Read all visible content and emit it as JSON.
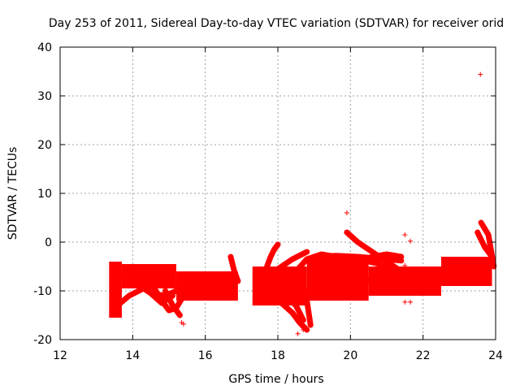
{
  "chart_data": {
    "type": "scatter",
    "title": "Day 253 of 2011, Sidereal Day-to-day VTEC variation (SDTVAR) for receiver orid",
    "xlabel": "GPS time / hours",
    "ylabel": "SDTVAR / TECUs",
    "xlim": [
      12,
      24
    ],
    "ylim": [
      -20,
      40
    ],
    "xticks": [
      12,
      14,
      16,
      18,
      20,
      22,
      24
    ],
    "yticks": [
      -20,
      -10,
      0,
      10,
      20,
      30,
      40
    ],
    "grid": true,
    "marker": "+",
    "color": "#ff0000",
    "bands": [
      {
        "x_start": 13.35,
        "x_end": 13.7,
        "y_low": -15.5,
        "y_high": -4
      },
      {
        "x_start": 13.7,
        "x_end": 15.2,
        "y_low": -9.5,
        "y_high": -4.5
      },
      {
        "x_start": 15.2,
        "x_end": 16.9,
        "y_low": -12,
        "y_high": -6
      },
      {
        "x_start": 17.3,
        "x_end": 18.8,
        "y_low": -13,
        "y_high": -5
      },
      {
        "x_start": 18.8,
        "x_end": 20.5,
        "y_low": -12,
        "y_high": -3
      },
      {
        "x_start": 20.5,
        "x_end": 22.5,
        "y_low": -11,
        "y_high": -5
      },
      {
        "x_start": 22.5,
        "x_end": 23.9,
        "y_low": -9,
        "y_high": -3
      }
    ],
    "traces": [
      {
        "x": [
          13.5,
          13.9,
          14.3,
          14.7,
          15.1,
          15.5
        ],
        "y": [
          -13.5,
          -11,
          -9.5,
          -8.5,
          -8,
          -7.5
        ]
      },
      {
        "x": [
          13.5,
          14.0,
          14.5,
          14.9,
          15.2
        ],
        "y": [
          -6,
          -8,
          -10.5,
          -11,
          -10
        ]
      },
      {
        "x": [
          14.3,
          14.5,
          14.8,
          15.1
        ],
        "y": [
          -8,
          -10.5,
          -12.5,
          -11
        ]
      },
      {
        "x": [
          14.6,
          14.8,
          15.0,
          15.2,
          15.4
        ],
        "y": [
          -9.5,
          -12,
          -14,
          -13.5,
          -11
        ]
      },
      {
        "x": [
          14.9,
          15.1,
          15.3
        ],
        "y": [
          -10,
          -13,
          -15
        ]
      },
      {
        "x": [
          16.7,
          16.8,
          16.9
        ],
        "y": [
          -3,
          -6,
          -8
        ]
      },
      {
        "x": [
          17.4,
          17.8,
          18.1,
          18.4,
          18.6,
          18.8
        ],
        "y": [
          -9,
          -10.5,
          -12.5,
          -14.5,
          -16.5,
          -18
        ]
      },
      {
        "x": [
          17.5,
          17.9,
          18.2,
          18.5,
          18.7
        ],
        "y": [
          -7,
          -9,
          -11,
          -13,
          -16
        ]
      },
      {
        "x": [
          17.7,
          17.8,
          17.9,
          18.0
        ],
        "y": [
          -5,
          -3,
          -1.5,
          -0.5
        ]
      },
      {
        "x": [
          17.6,
          18.0,
          18.4,
          18.8
        ],
        "y": [
          -8,
          -5.5,
          -3.5,
          -2
        ]
      },
      {
        "x": [
          18.6,
          18.7,
          18.8,
          18.9
        ],
        "y": [
          -7,
          -9,
          -12,
          -17
        ]
      },
      {
        "x": [
          18.5,
          18.8,
          19.2,
          19.6
        ],
        "y": [
          -6,
          -3.5,
          -2.5,
          -3
        ]
      },
      {
        "x": [
          19.9,
          20.2,
          20.6,
          21.0,
          21.4
        ],
        "y": [
          2,
          0,
          -2,
          -4,
          -6
        ]
      },
      {
        "x": [
          19.0,
          19.6,
          20.2,
          20.8,
          21.4
        ],
        "y": [
          -3,
          -2.8,
          -3,
          -3.4,
          -3.8
        ]
      },
      {
        "x": [
          20.2,
          20.6,
          21.0,
          21.4
        ],
        "y": [
          -4,
          -3,
          -2.5,
          -3
        ]
      },
      {
        "x": [
          20.0,
          20.4,
          20.8,
          21.4,
          21.8
        ],
        "y": [
          -8.5,
          -8,
          -7.5,
          -7.2,
          -7
        ]
      },
      {
        "x": [
          20.2,
          20.8,
          21.3
        ],
        "y": [
          -3.5,
          -4.5,
          -6
        ]
      },
      {
        "x": [
          23.5,
          23.7,
          23.9
        ],
        "y": [
          2,
          -1,
          -3
        ]
      },
      {
        "x": [
          23.6,
          23.8,
          23.95
        ],
        "y": [
          4,
          1.5,
          -5
        ]
      }
    ],
    "points": [
      {
        "x": 23.58,
        "y": 34.4
      },
      {
        "x": 19.9,
        "y": 6
      },
      {
        "x": 21.5,
        "y": 1.5
      },
      {
        "x": 21.65,
        "y": 0.2
      },
      {
        "x": 21.5,
        "y": -12.3
      },
      {
        "x": 21.65,
        "y": -12.3
      },
      {
        "x": 15.35,
        "y": -16.5
      },
      {
        "x": 15.4,
        "y": -16.8
      },
      {
        "x": 18.55,
        "y": -18.8
      },
      {
        "x": 18.7,
        "y": -18
      },
      {
        "x": 18.55,
        "y": -12.5
      },
      {
        "x": 18.7,
        "y": -17.6
      },
      {
        "x": 21.5,
        "y": -4.8
      },
      {
        "x": 21.4,
        "y": -10.5
      }
    ]
  }
}
